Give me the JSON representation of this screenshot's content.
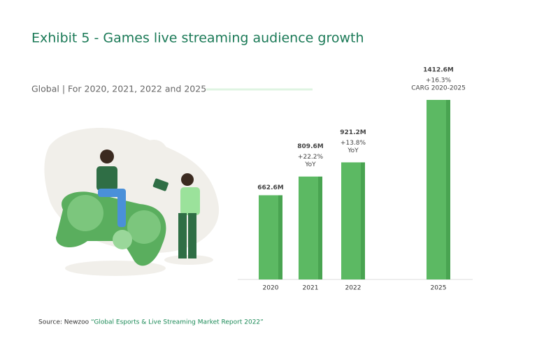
{
  "chart_data": {
    "type": "bar",
    "title": "Exhibit 5 - Games live streaming audience growth",
    "subtitle": "Global | For 2020, 2021, 2022 and 2025",
    "categories": [
      "2020",
      "2021",
      "2022",
      "2025"
    ],
    "values": [
      662.6,
      809.6,
      921.2,
      1412.6
    ],
    "value_labels": [
      "662.6M",
      "809.6M",
      "921.2M",
      "1412.6M"
    ],
    "growth_labels": [
      null,
      "+22.2%",
      "+13.8%",
      "+16.3%"
    ],
    "growth_notes": [
      null,
      "YoY",
      "YoY",
      "CARG 2020-2025"
    ],
    "color": "#5cb963",
    "source": "Source: Newzoo",
    "source_title": "“Global Esports & Live Streaming Market Report 2022”"
  }
}
